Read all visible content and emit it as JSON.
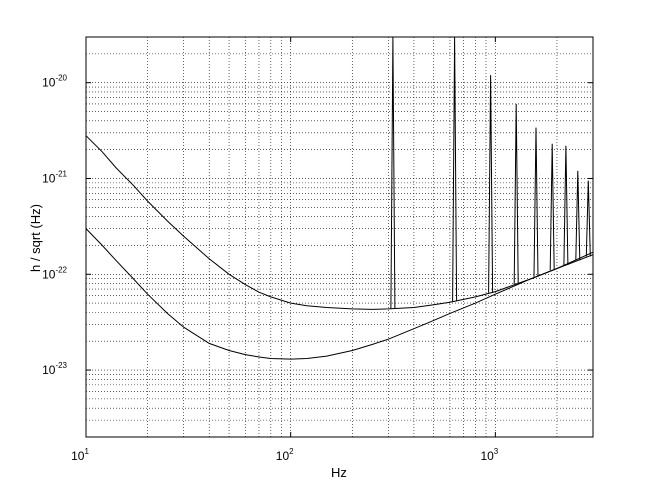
{
  "chart_data": {
    "type": "line",
    "title": "",
    "xlabel": "Hz",
    "ylabel": "h / sqrt (Hz)",
    "x_scale": "log",
    "y_scale": "log",
    "xlim": [
      10,
      3000
    ],
    "ylim": [
      2e-24,
      3e-20
    ],
    "grid": true,
    "x_ticks": [
      {
        "base": "10",
        "exp": "1",
        "value": 10
      },
      {
        "base": "10",
        "exp": "2",
        "value": 100
      },
      {
        "base": "10",
        "exp": "3",
        "value": 1000
      }
    ],
    "y_ticks": [
      {
        "base": "10",
        "exp": "-23",
        "value": 1e-23
      },
      {
        "base": "10",
        "exp": "-22",
        "value": 1e-22
      },
      {
        "base": "10",
        "exp": "-21",
        "value": 1e-21
      },
      {
        "base": "10",
        "exp": "-20",
        "value": 1e-20
      }
    ],
    "series": [
      {
        "x": [
          10,
          12,
          14,
          17,
          20,
          25,
          30,
          40,
          50,
          60,
          70,
          80,
          100,
          120,
          150,
          200,
          250,
          300,
          400,
          500,
          600,
          800,
          1000,
          1500,
          2000,
          3000
        ],
        "y": [
          2.8e-21,
          1.9e-21,
          1.3e-21,
          8.5e-22,
          5.8e-22,
          3.6e-22,
          2.5e-22,
          1.45e-22,
          1e-22,
          7.8e-23,
          6.5e-23,
          5.8e-23,
          5e-23,
          4.7e-23,
          4.5e-23,
          4.35e-23,
          4.3e-23,
          4.35e-23,
          4.5e-23,
          4.8e-23,
          5.1e-23,
          5.8e-23,
          6.6e-23,
          9e-23,
          1.15e-22,
          1.6e-22
        ],
        "peaks": [
          {
            "x": 316,
            "y": 3e-20
          },
          {
            "x": 632,
            "y": 3e-20
          },
          {
            "x": 948,
            "y": 1.2e-20
          },
          {
            "x": 1264,
            "y": 6e-21
          },
          {
            "x": 1580,
            "y": 3.4e-21
          },
          {
            "x": 1896,
            "y": 2.3e-21
          },
          {
            "x": 2212,
            "y": 2.2e-21
          },
          {
            "x": 2528,
            "y": 1.2e-21
          },
          {
            "x": 2844,
            "y": 9.5e-22
          }
        ]
      },
      {
        "x": [
          10,
          12,
          14,
          17,
          20,
          25,
          30,
          40,
          50,
          60,
          70,
          80,
          100,
          120,
          150,
          200,
          250,
          300,
          400,
          500,
          600,
          800,
          1000,
          1500,
          2000,
          3000
        ],
        "y": [
          3e-22,
          2e-22,
          1.4e-22,
          9e-23,
          6.2e-23,
          3.9e-23,
          2.8e-23,
          1.9e-23,
          1.6e-23,
          1.45e-23,
          1.37e-23,
          1.32e-23,
          1.3e-23,
          1.32e-23,
          1.4e-23,
          1.6e-23,
          1.85e-23,
          2.1e-23,
          2.7e-23,
          3.3e-23,
          3.9e-23,
          5e-23,
          6.2e-23,
          9e-23,
          1.15e-22,
          1.7e-22
        ]
      }
    ]
  }
}
